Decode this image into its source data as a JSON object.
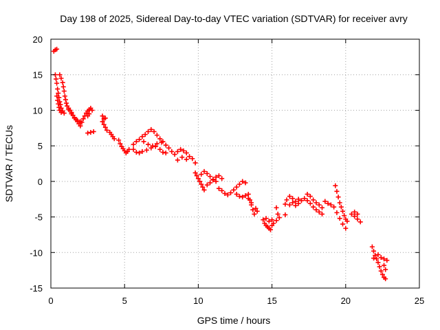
{
  "chart_data": {
    "type": "scatter",
    "title": "Day 198 of 2025, Sidereal Day-to-day VTEC variation (SDTVAR) for receiver avry",
    "xlabel": "GPS time / hours",
    "ylabel": "SDTVAR / TECUs",
    "xlim": [
      0,
      25
    ],
    "ylim": [
      -15,
      20
    ],
    "xticks": [
      0,
      5,
      10,
      15,
      20,
      25
    ],
    "xtick_labels": [
      "0",
      "5",
      "10",
      "15",
      "20",
      "25"
    ],
    "yticks": [
      -15,
      -10,
      -5,
      0,
      5,
      10,
      15,
      20
    ],
    "ytick_labels": [
      "-15",
      "-10",
      "-5",
      "0",
      "5",
      "10",
      "15",
      "20"
    ],
    "grid": true,
    "marker": "+",
    "series": [
      {
        "name": "avry",
        "color": "#ff0000",
        "points": [
          [
            0.2,
            18.3
          ],
          [
            0.3,
            18.5
          ],
          [
            0.4,
            18.6
          ],
          [
            0.3,
            15.0
          ],
          [
            0.35,
            14.4
          ],
          [
            0.4,
            13.8
          ],
          [
            0.45,
            13.0
          ],
          [
            0.5,
            12.4
          ],
          [
            0.55,
            11.8
          ],
          [
            0.6,
            11.2
          ],
          [
            0.65,
            10.8
          ],
          [
            0.7,
            10.3
          ],
          [
            0.8,
            9.9
          ],
          [
            0.9,
            9.6
          ],
          [
            0.4,
            12.0
          ],
          [
            0.45,
            11.4
          ],
          [
            0.5,
            10.9
          ],
          [
            0.55,
            10.4
          ],
          [
            0.6,
            10.0
          ],
          [
            0.7,
            9.7
          ],
          [
            0.6,
            15.0
          ],
          [
            0.7,
            14.5
          ],
          [
            0.8,
            13.9
          ],
          [
            0.85,
            13.3
          ],
          [
            0.9,
            12.7
          ],
          [
            0.95,
            12.0
          ],
          [
            1.0,
            11.5
          ],
          [
            1.05,
            11.0
          ],
          [
            1.1,
            10.6
          ],
          [
            1.2,
            10.3
          ],
          [
            1.3,
            10.0
          ],
          [
            1.4,
            9.7
          ],
          [
            1.5,
            9.3
          ],
          [
            1.6,
            9.0
          ],
          [
            1.7,
            8.7
          ],
          [
            1.8,
            8.4
          ],
          [
            1.9,
            8.1
          ],
          [
            2.0,
            7.8
          ],
          [
            2.1,
            8.3
          ],
          [
            1.2,
            10.1
          ],
          [
            1.4,
            9.5
          ],
          [
            1.6,
            8.9
          ],
          [
            1.8,
            8.6
          ],
          [
            2.0,
            8.4
          ],
          [
            2.2,
            8.8
          ],
          [
            2.3,
            9.2
          ],
          [
            2.4,
            9.6
          ],
          [
            2.5,
            9.9
          ],
          [
            2.6,
            10.1
          ],
          [
            2.7,
            10.3
          ],
          [
            2.8,
            10.0
          ],
          [
            2.5,
            9.2
          ],
          [
            2.6,
            9.5
          ],
          [
            2.5,
            6.8
          ],
          [
            2.7,
            6.9
          ],
          [
            2.9,
            7.0
          ],
          [
            3.5,
            9.2
          ],
          [
            3.6,
            8.8
          ],
          [
            3.5,
            8.4
          ],
          [
            3.6,
            8.0
          ],
          [
            3.7,
            7.6
          ],
          [
            3.8,
            7.2
          ],
          [
            3.7,
            8.9
          ],
          [
            4.0,
            6.9
          ],
          [
            4.1,
            6.6
          ],
          [
            4.2,
            6.3
          ],
          [
            4.3,
            6.0
          ],
          [
            4.6,
            5.8
          ],
          [
            4.7,
            5.3
          ],
          [
            4.8,
            4.9
          ],
          [
            4.9,
            4.6
          ],
          [
            5.0,
            4.3
          ],
          [
            5.1,
            4.0
          ],
          [
            5.2,
            4.2
          ],
          [
            5.3,
            4.5
          ],
          [
            5.6,
            5.2
          ],
          [
            5.8,
            5.6
          ],
          [
            6.0,
            5.9
          ],
          [
            6.2,
            6.3
          ],
          [
            6.4,
            6.6
          ],
          [
            6.6,
            7.0
          ],
          [
            6.8,
            7.3
          ],
          [
            7.0,
            7.0
          ],
          [
            5.6,
            4.5
          ],
          [
            5.8,
            4.1
          ],
          [
            6.0,
            4.0
          ],
          [
            6.2,
            4.2
          ],
          [
            6.5,
            4.4
          ],
          [
            6.8,
            4.7
          ],
          [
            7.1,
            4.9
          ],
          [
            7.4,
            4.5
          ],
          [
            7.6,
            4.1
          ],
          [
            7.8,
            4.0
          ],
          [
            6.3,
            5.6
          ],
          [
            6.6,
            5.2
          ],
          [
            6.9,
            5.0
          ],
          [
            7.2,
            5.3
          ],
          [
            7.5,
            5.5
          ],
          [
            7.2,
            6.5
          ],
          [
            7.4,
            6.0
          ],
          [
            7.6,
            5.6
          ],
          [
            7.8,
            5.1
          ],
          [
            8.0,
            4.7
          ],
          [
            8.2,
            4.2
          ],
          [
            8.4,
            3.8
          ],
          [
            8.6,
            4.2
          ],
          [
            8.8,
            4.5
          ],
          [
            9.0,
            4.3
          ],
          [
            9.2,
            4.0
          ],
          [
            9.4,
            3.5
          ],
          [
            9.6,
            3.2
          ],
          [
            9.8,
            2.6
          ],
          [
            8.6,
            3.0
          ],
          [
            8.9,
            3.4
          ],
          [
            9.2,
            3.1
          ],
          [
            9.8,
            1.2
          ],
          [
            9.9,
            0.8
          ],
          [
            10.0,
            0.4
          ],
          [
            10.1,
            0.0
          ],
          [
            10.2,
            -0.4
          ],
          [
            10.3,
            -0.8
          ],
          [
            10.4,
            -1.2
          ],
          [
            10.2,
            1.0
          ],
          [
            10.4,
            1.4
          ],
          [
            10.6,
            1.1
          ],
          [
            10.8,
            0.7
          ],
          [
            11.0,
            0.3
          ],
          [
            11.2,
            0.0
          ],
          [
            10.6,
            -0.5
          ],
          [
            10.8,
            -0.2
          ],
          [
            11.0,
            0.2
          ],
          [
            11.2,
            0.6
          ],
          [
            11.4,
            0.8
          ],
          [
            11.6,
            0.4
          ],
          [
            11.4,
            -1.0
          ],
          [
            11.6,
            -1.3
          ],
          [
            11.8,
            -1.7
          ],
          [
            12.0,
            -1.9
          ],
          [
            12.2,
            -1.6
          ],
          [
            12.4,
            -1.2
          ],
          [
            12.6,
            -0.8
          ],
          [
            12.8,
            -0.4
          ],
          [
            13.0,
            0.0
          ],
          [
            13.2,
            -0.2
          ],
          [
            12.6,
            -1.8
          ],
          [
            12.8,
            -2.1
          ],
          [
            13.0,
            -2.2
          ],
          [
            13.2,
            -2.0
          ],
          [
            13.4,
            -2.4
          ],
          [
            13.6,
            -3.0
          ],
          [
            13.4,
            -1.8
          ],
          [
            13.5,
            -2.6
          ],
          [
            13.6,
            -3.3
          ],
          [
            13.7,
            -4.0
          ],
          [
            13.8,
            -4.6
          ],
          [
            13.9,
            -3.8
          ],
          [
            14.0,
            -4.2
          ],
          [
            14.4,
            -5.4
          ],
          [
            14.5,
            -5.9
          ],
          [
            14.6,
            -6.2
          ],
          [
            14.7,
            -6.4
          ],
          [
            14.8,
            -6.6
          ],
          [
            14.9,
            -6.8
          ],
          [
            15.0,
            -6.2
          ],
          [
            15.1,
            -5.9
          ],
          [
            15.3,
            -5.5
          ],
          [
            15.5,
            -5.1
          ],
          [
            14.6,
            -5.2
          ],
          [
            14.8,
            -5.6
          ],
          [
            15.0,
            -5.4
          ],
          [
            15.4,
            -4.6
          ],
          [
            15.3,
            -3.7
          ],
          [
            15.9,
            -3.2
          ],
          [
            15.9,
            -4.7
          ],
          [
            16.0,
            -2.6
          ],
          [
            16.2,
            -2.1
          ],
          [
            16.4,
            -2.4
          ],
          [
            16.6,
            -2.8
          ],
          [
            16.8,
            -3.1
          ],
          [
            17.0,
            -2.7
          ],
          [
            16.2,
            -3.3
          ],
          [
            16.4,
            -3.0
          ],
          [
            16.6,
            -3.4
          ],
          [
            16.8,
            -2.5
          ],
          [
            17.2,
            -2.4
          ],
          [
            17.4,
            -2.7
          ],
          [
            17.6,
            -3.1
          ],
          [
            17.8,
            -3.6
          ],
          [
            18.0,
            -4.0
          ],
          [
            18.2,
            -4.3
          ],
          [
            18.4,
            -4.6
          ],
          [
            17.4,
            -1.8
          ],
          [
            17.6,
            -2.1
          ],
          [
            17.8,
            -2.6
          ],
          [
            18.0,
            -3.0
          ],
          [
            18.2,
            -3.3
          ],
          [
            18.4,
            -3.7
          ],
          [
            18.6,
            -2.8
          ],
          [
            18.8,
            -3.1
          ],
          [
            19.0,
            -3.3
          ],
          [
            19.2,
            -3.6
          ],
          [
            19.3,
            -0.6
          ],
          [
            19.4,
            -1.4
          ],
          [
            19.5,
            -2.2
          ],
          [
            19.6,
            -3.0
          ],
          [
            19.7,
            -3.6
          ],
          [
            19.8,
            -4.2
          ],
          [
            19.9,
            -4.8
          ],
          [
            20.0,
            -5.3
          ],
          [
            20.1,
            -5.6
          ],
          [
            19.4,
            -4.4
          ],
          [
            19.6,
            -5.2
          ],
          [
            19.8,
            -6.0
          ],
          [
            20.0,
            -6.6
          ],
          [
            20.4,
            -4.6
          ],
          [
            20.6,
            -4.9
          ],
          [
            20.8,
            -5.3
          ],
          [
            21.0,
            -5.7
          ],
          [
            20.6,
            -4.3
          ],
          [
            20.8,
            -4.6
          ],
          [
            21.8,
            -9.2
          ],
          [
            21.9,
            -9.8
          ],
          [
            22.0,
            -10.4
          ],
          [
            22.1,
            -10.9
          ],
          [
            21.9,
            -10.8
          ],
          [
            22.2,
            -11.4
          ],
          [
            22.3,
            -12.0
          ],
          [
            22.4,
            -12.6
          ],
          [
            22.5,
            -13.1
          ],
          [
            22.6,
            -13.5
          ],
          [
            22.7,
            -13.7
          ],
          [
            22.2,
            -10.3
          ],
          [
            22.4,
            -10.7
          ],
          [
            22.6,
            -10.9
          ],
          [
            22.8,
            -11.1
          ],
          [
            22.6,
            -11.8
          ],
          [
            22.7,
            -12.4
          ]
        ]
      }
    ]
  }
}
